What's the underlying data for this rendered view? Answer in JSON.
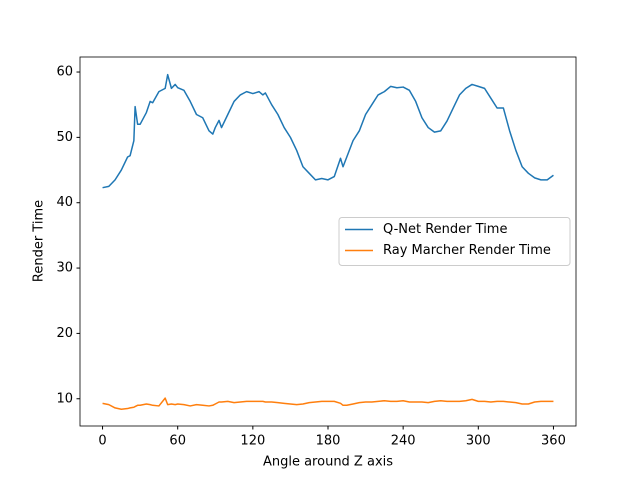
{
  "chart_data": {
    "type": "line",
    "xlabel": "Angle around Z axis",
    "ylabel": "Render Time",
    "x": [
      0,
      5,
      10,
      15,
      20,
      22,
      25,
      26,
      28,
      30,
      35,
      38,
      40,
      45,
      50,
      52,
      55,
      58,
      60,
      65,
      70,
      75,
      80,
      85,
      88,
      90,
      93,
      95,
      100,
      105,
      110,
      115,
      120,
      125,
      128,
      130,
      135,
      140,
      145,
      150,
      155,
      160,
      165,
      170,
      175,
      180,
      185,
      190,
      192,
      195,
      200,
      205,
      210,
      215,
      220,
      225,
      230,
      235,
      240,
      245,
      250,
      255,
      260,
      265,
      270,
      275,
      280,
      285,
      290,
      295,
      300,
      305,
      310,
      315,
      320,
      325,
      330,
      335,
      340,
      345,
      350,
      355,
      360
    ],
    "series": [
      {
        "name": "Q-Net Render Time",
        "color": "#1f77b4",
        "values": [
          42.3,
          42.5,
          43.5,
          45,
          47,
          47.2,
          49.5,
          54.7,
          52,
          52,
          53.8,
          55.5,
          55.3,
          57,
          57.5,
          59.6,
          57.5,
          58.1,
          57.6,
          57.2,
          55.5,
          53.5,
          53,
          51,
          50.5,
          51.5,
          52.6,
          51.5,
          53.5,
          55.5,
          56.5,
          57,
          56.7,
          57,
          56.5,
          56.8,
          55,
          53.5,
          51.5,
          50,
          48,
          45.5,
          44.5,
          43.5,
          43.7,
          43.5,
          44,
          46.8,
          45.5,
          47,
          49.5,
          51,
          53.5,
          55,
          56.5,
          57,
          57.8,
          57.6,
          57.7,
          57.2,
          55.5,
          53,
          51.5,
          50.8,
          51,
          52.5,
          54.5,
          56.5,
          57.5,
          58.1,
          57.8,
          57.5,
          56,
          54.5,
          54.5,
          51,
          48,
          45.5,
          44.5,
          43.8,
          43.5,
          43.5,
          44.2
        ]
      },
      {
        "name": "Ray Marcher Render Time",
        "color": "#ff7f0e",
        "values": [
          9.3,
          9.1,
          8.6,
          8.4,
          8.5,
          8.6,
          8.7,
          8.8,
          9.0,
          9.0,
          9.2,
          9.1,
          9.0,
          8.9,
          10.1,
          9.1,
          9.2,
          9.1,
          9.2,
          9.1,
          8.9,
          9.1,
          9.0,
          8.9,
          9.0,
          9.2,
          9.5,
          9.5,
          9.6,
          9.4,
          9.5,
          9.6,
          9.6,
          9.6,
          9.6,
          9.5,
          9.5,
          9.4,
          9.3,
          9.2,
          9.1,
          9.2,
          9.4,
          9.5,
          9.6,
          9.6,
          9.6,
          9.3,
          9.0,
          9.0,
          9.2,
          9.4,
          9.5,
          9.5,
          9.6,
          9.7,
          9.6,
          9.6,
          9.7,
          9.5,
          9.5,
          9.5,
          9.4,
          9.6,
          9.7,
          9.6,
          9.6,
          9.6,
          9.7,
          9.9,
          9.6,
          9.6,
          9.5,
          9.6,
          9.6,
          9.5,
          9.4,
          9.2,
          9.2,
          9.5,
          9.6,
          9.6,
          9.6
        ]
      }
    ],
    "xlim": [
      -18,
      378
    ],
    "xticks": [
      0,
      60,
      120,
      180,
      240,
      300,
      360
    ],
    "ylim": [
      5.83,
      62.3
    ],
    "yticks": [
      10,
      20,
      30,
      40,
      50,
      60
    ],
    "grid": false,
    "legend": "center right"
  }
}
